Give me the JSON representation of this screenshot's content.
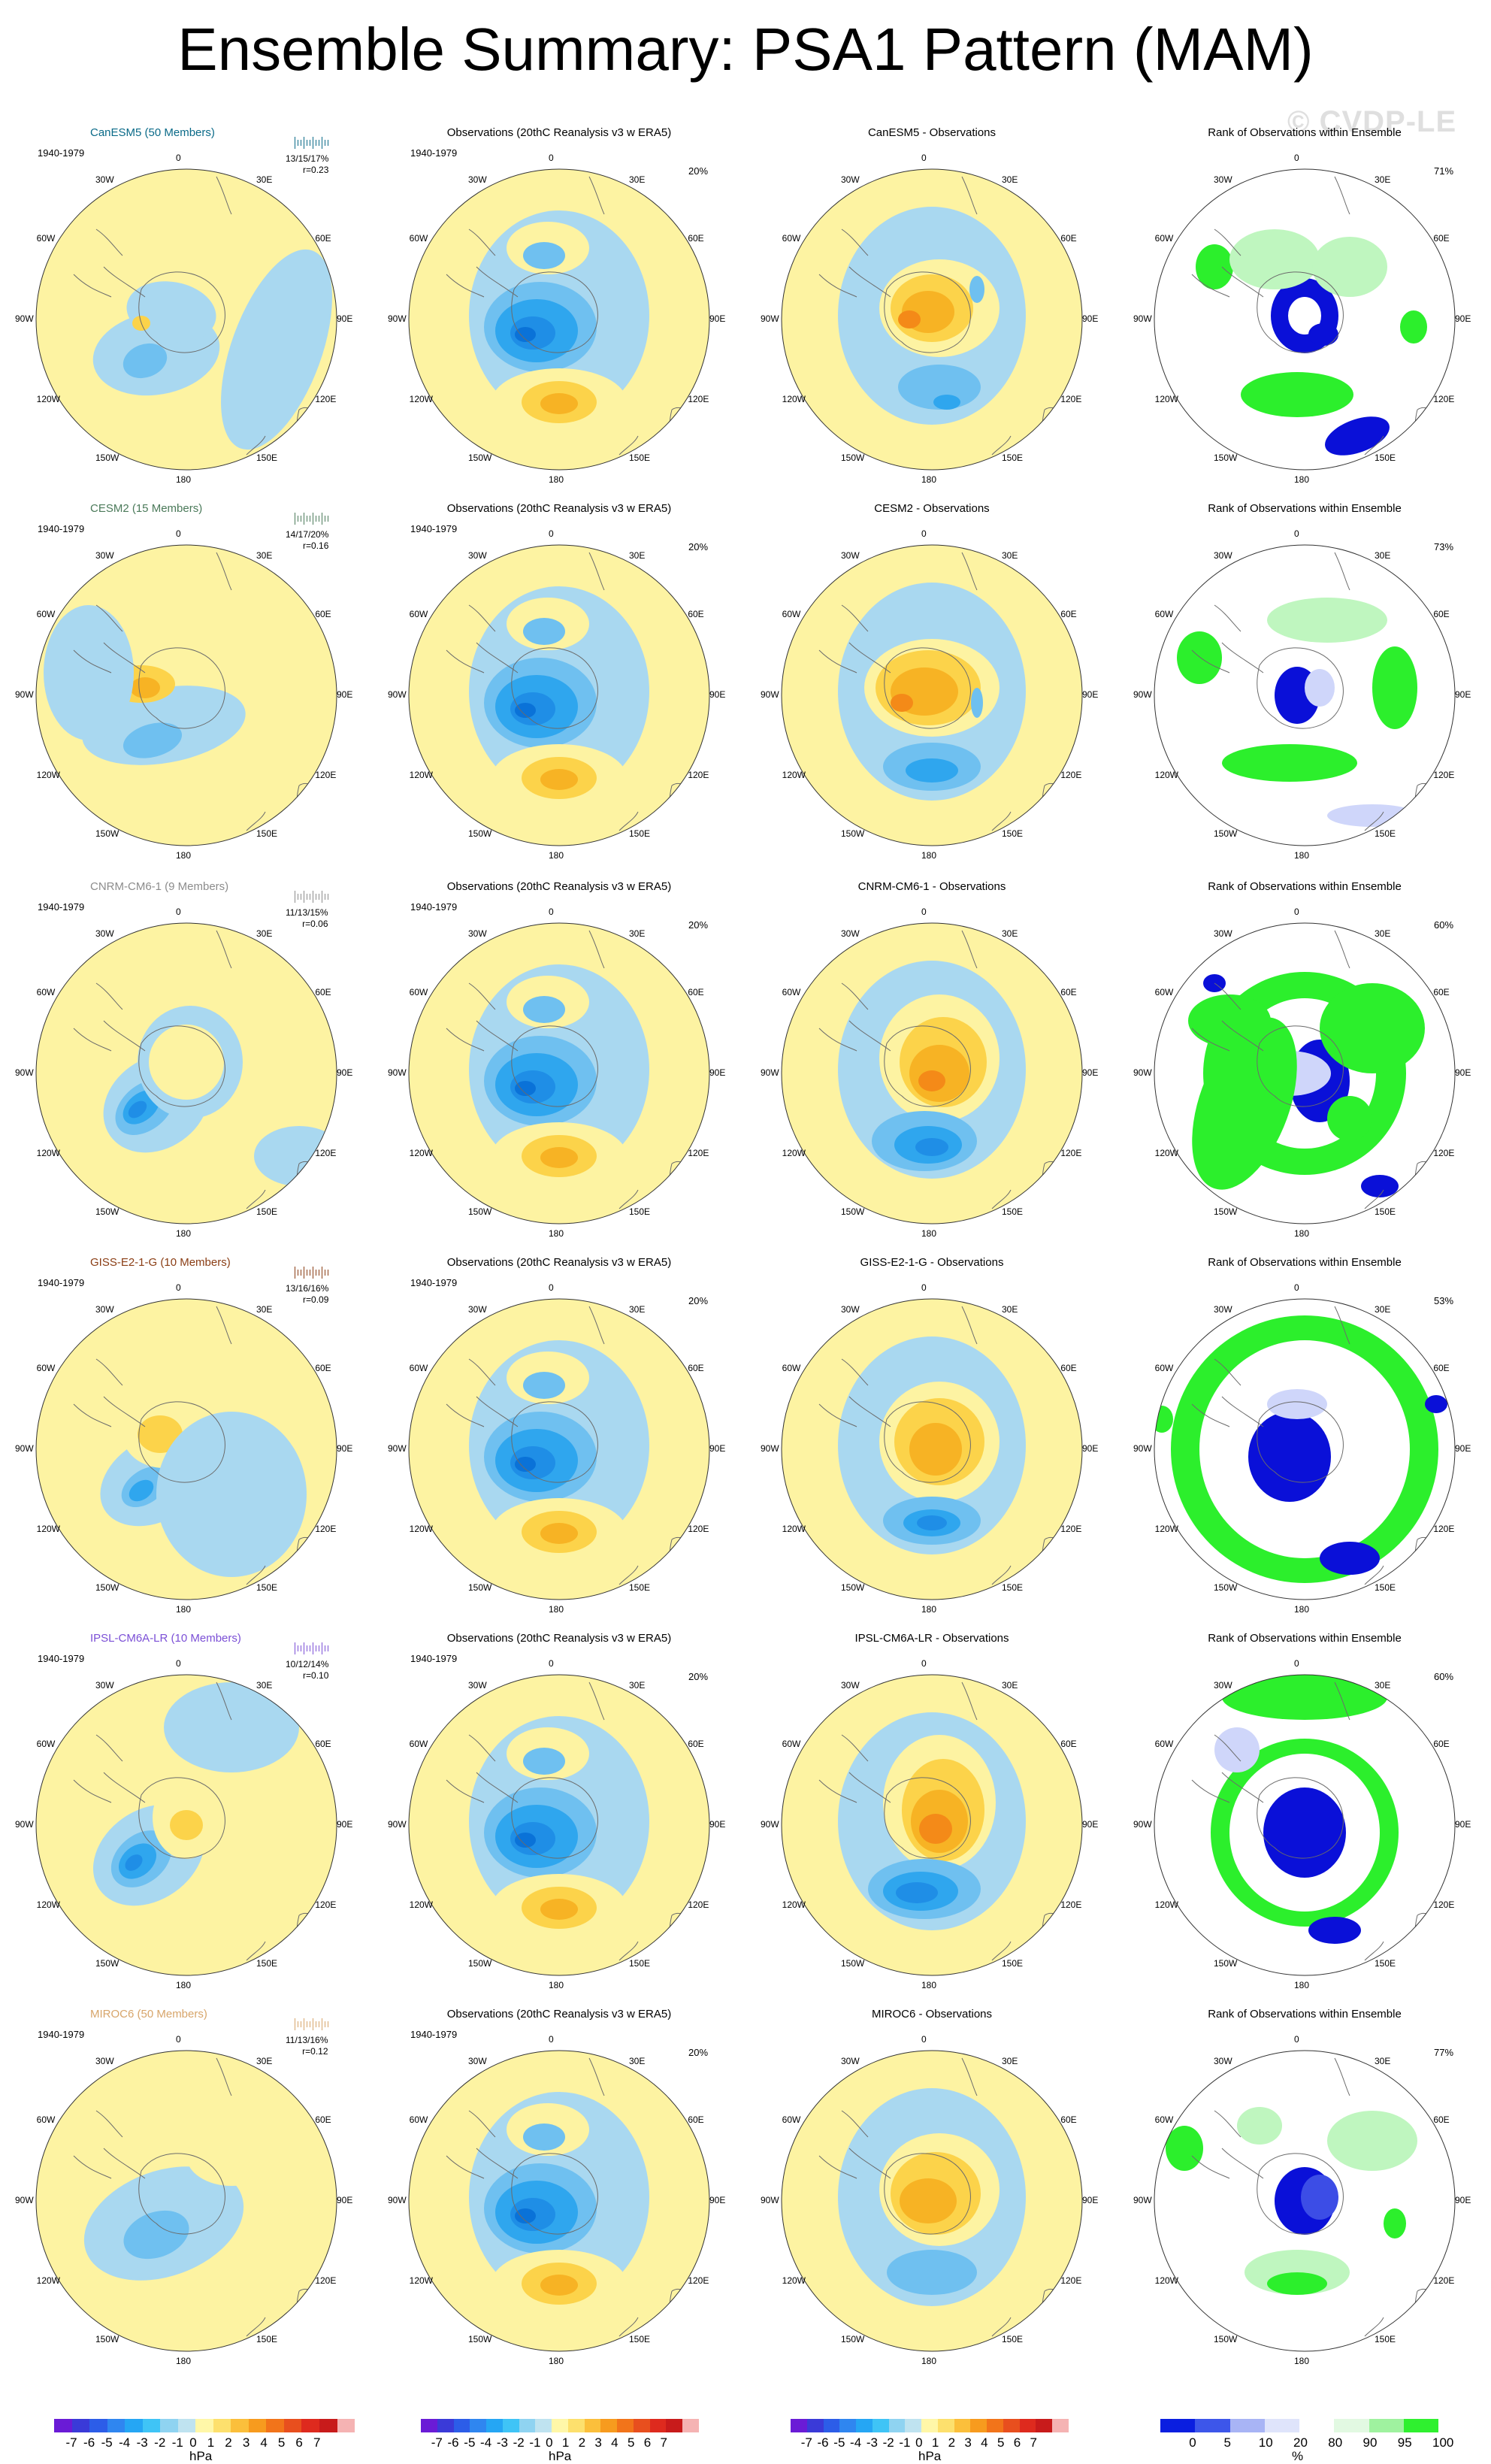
{
  "title": "Ensemble Summary: PSA1 Pattern (MAM)",
  "watermark": "© CVDP-LE",
  "period": "1940-1979",
  "obs_title": "Observations (20thC Reanalysis v3 w ERA5)",
  "obs_pct": "20%",
  "rank_title": "Rank of Observations within Ensemble",
  "lon_labels": [
    "0",
    "30E",
    "60E",
    "90E",
    "120E",
    "150E",
    "180",
    "150W",
    "120W",
    "90W",
    "60W",
    "30W"
  ],
  "models": [
    {
      "title": "CanESM5 (50 Members)",
      "color": "#0a6a88",
      "stats": "13/15/17%",
      "r": "r=0.23",
      "diff_title": "CanESM5 - Observations",
      "rank_pct": "71%"
    },
    {
      "title": "CESM2 (15 Members)",
      "color": "#4b7a5a",
      "stats": "14/17/20%",
      "r": "r=0.16",
      "diff_title": "CESM2 - Observations",
      "rank_pct": "73%"
    },
    {
      "title": "CNRM-CM6-1 (9 Members)",
      "color": "#8c8c8c",
      "stats": "11/13/15%",
      "r": "r=0.06",
      "diff_title": "CNRM-CM6-1 - Observations",
      "rank_pct": "60%"
    },
    {
      "title": "GISS-E2-1-G (10 Members)",
      "color": "#8a3d14",
      "stats": "13/16/16%",
      "r": "r=0.09",
      "diff_title": "GISS-E2-1-G - Observations",
      "rank_pct": "53%"
    },
    {
      "title": "IPSL-CM6A-LR (10 Members)",
      "color": "#7b4fd6",
      "stats": "10/12/14%",
      "r": "r=0.10",
      "diff_title": "IPSL-CM6A-LR - Observations",
      "rank_pct": "60%"
    },
    {
      "title": "MIROC6 (50 Members)",
      "color": "#d7a56a",
      "stats": "11/13/16%",
      "r": "r=0.12",
      "diff_title": "MIROC6 - Observations",
      "rank_pct": "77%"
    }
  ],
  "colorbar": {
    "labels": [
      "-7",
      "-6",
      "-5",
      "-4",
      "-3",
      "-2",
      "-1",
      "0",
      "1",
      "2",
      "3",
      "4",
      "5",
      "6",
      "7"
    ],
    "units": "hPa",
    "colors": [
      "#6a1bd6",
      "#3a3ad8",
      "#2c5de8",
      "#2f86f0",
      "#25a6f4",
      "#3fc4f6",
      "#8fd3f1",
      "#bfe3f0",
      "#fff7a8",
      "#fde06d",
      "#fbbf3b",
      "#f79b1e",
      "#f2741a",
      "#e84f1e",
      "#de2a1e",
      "#c81b1b",
      "#f5b3b3"
    ]
  },
  "rank_colorbar": {
    "labels": [
      "0",
      "5",
      "10",
      "20",
      "80",
      "90",
      "95",
      "100"
    ],
    "units": "%",
    "colors": [
      "#0a1ee0",
      "#3d56ea",
      "#a8b4f5",
      "#dfe4fb",
      "#ffffff",
      "#e2f9e2",
      "#9ff29f",
      "#2ff02f"
    ]
  }
}
